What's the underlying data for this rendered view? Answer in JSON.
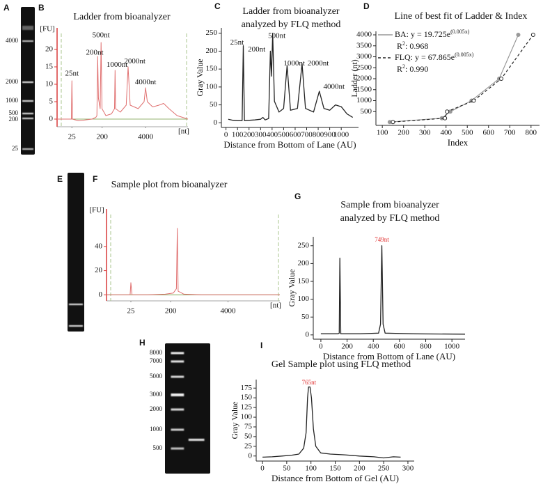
{
  "chart_data": [
    {
      "type": "gel",
      "panel": "A",
      "labels": [
        "4000",
        "2000",
        "1000",
        "500",
        "200",
        "25"
      ]
    },
    {
      "type": "line",
      "style": "bioanalyzer",
      "panel": "B",
      "title": "Ladder from bioanalyzer",
      "ylabel": "[FU]",
      "xlabel": "[nt]",
      "xscale": "log",
      "xlim": [
        9,
        74000
      ],
      "ylim": [
        -2.2,
        26.2
      ],
      "xticks": [
        25,
        200,
        4000
      ],
      "yticks": [
        0,
        5,
        10,
        15,
        20
      ],
      "color": "#e07070",
      "axis_color": "#d83a3a",
      "baseline_color": "#6f9a3f",
      "x": [
        9,
        20,
        24,
        25,
        26,
        40,
        100,
        130,
        140,
        147,
        155,
        175,
        186,
        198,
        260,
        380,
        470,
        488,
        505,
        700,
        1050,
        1200,
        1380,
        2400,
        3600,
        4000,
        4500,
        6500,
        10000,
        13800,
        20000,
        35000,
        74000
      ],
      "values": [
        0,
        0,
        0,
        11,
        0,
        -0.5,
        0,
        0.5,
        1,
        18,
        6,
        3,
        22,
        3,
        1,
        1.5,
        3,
        14,
        3,
        2,
        4,
        15,
        4,
        3,
        5,
        9,
        5,
        3.5,
        4,
        4.5,
        3,
        1,
        0
      ],
      "annotations": [
        {
          "text": "25nt",
          "x": 25,
          "y": 13
        },
        {
          "text": "200nt",
          "x": 120,
          "y": 19
        },
        {
          "text": "500nt",
          "x": 186,
          "y": 24
        },
        {
          "text": "1000nt",
          "x": 560,
          "y": 15.5
        },
        {
          "text": "2000nt",
          "x": 1900,
          "y": 16.5
        },
        {
          "text": "4000nt",
          "x": 4000,
          "y": 10.5
        }
      ]
    },
    {
      "type": "line",
      "panel": "C",
      "title": [
        "Ladder from bioanalyzer",
        "analyzed by FLQ method"
      ],
      "ylabel": "Gray Value",
      "xlabel": "Distance from Bottom of Lane (AU)",
      "xlim": [
        -40,
        1150
      ],
      "ylim": [
        -13,
        265
      ],
      "xticks": [
        0,
        100,
        200,
        300,
        400,
        500,
        600,
        700,
        800,
        900,
        1000
      ],
      "yticks": [
        0,
        50,
        100,
        150,
        200,
        250
      ],
      "color": "#222222",
      "x": [
        20,
        60,
        100,
        140,
        150,
        160,
        250,
        300,
        320,
        340,
        370,
        385,
        395,
        405,
        420,
        460,
        500,
        530,
        560,
        620,
        660,
        690,
        760,
        810,
        850,
        900,
        950,
        1000,
        1050,
        1100
      ],
      "values": [
        10,
        7,
        6,
        6,
        215,
        6,
        8,
        10,
        15,
        8,
        12,
        200,
        130,
        250,
        60,
        30,
        40,
        160,
        35,
        40,
        165,
        40,
        30,
        88,
        40,
        35,
        50,
        45,
        25,
        15
      ],
      "annotations": [
        {
          "text": "25nt",
          "x": 95,
          "y": 223
        },
        {
          "text": "200nt",
          "x": 266,
          "y": 204
        },
        {
          "text": "500nt",
          "x": 441,
          "y": 242
        },
        {
          "text": "1000nt",
          "x": 592,
          "y": 165
        },
        {
          "text": "2000nt",
          "x": 800,
          "y": 165
        },
        {
          "text": "4000nt",
          "x": 937,
          "y": 100
        }
      ]
    },
    {
      "type": "scatter-line",
      "panel": "D",
      "title": "Line of best fit of Ladder & Index",
      "ylabel": "Ladder (nt)",
      "xlabel": "Index",
      "xlim": [
        70,
        840
      ],
      "ylim": [
        -127,
        4160
      ],
      "xticks": [
        100,
        200,
        300,
        400,
        500,
        600,
        700,
        800
      ],
      "yticks": [
        500,
        1000,
        1500,
        2000,
        2500,
        3000,
        3500,
        4000
      ],
      "series": [
        {
          "name": "BA: y = 19.725e",
          "name_sup": "(0.005x)",
          "r2": [
            "R",
            "2",
            ": 0.968"
          ],
          "color": "#999999",
          "dashed": false,
          "marker": "filled",
          "x": [
            135,
            380,
            420,
            520,
            650,
            740
          ],
          "values": [
            25,
            200,
            500,
            1000,
            2000,
            4000
          ]
        },
        {
          "name": "FLQ: y = 67.865e",
          "name_sup": "(0.005x)",
          "r2": [
            "R",
            "2",
            ": 0.990"
          ],
          "color": "#222222",
          "dashed": true,
          "marker": "open",
          "x": [
            150,
            395,
            405,
            530,
            660,
            810
          ],
          "values": [
            25,
            200,
            500,
            1000,
            2000,
            4000
          ]
        }
      ]
    },
    {
      "type": "gel",
      "panel": "E",
      "labels": []
    },
    {
      "type": "line",
      "style": "bioanalyzer",
      "panel": "F",
      "title": "Sample plot from bioanalyzer",
      "ylabel": "[FU]",
      "xlabel": "[nt]",
      "xscale": "log",
      "xlim": [
        7,
        60000
      ],
      "ylim": [
        -5,
        71
      ],
      "xticks": [
        25,
        200,
        4000
      ],
      "yticks": [
        0,
        20,
        40
      ],
      "color": "#e07070",
      "axis_color": "#d83a3a",
      "baseline_color": "#6f9a3f",
      "x": [
        7,
        20,
        24,
        25,
        26.5,
        60,
        150,
        230,
        270,
        283,
        295,
        400,
        1000,
        60000
      ],
      "values": [
        0,
        0,
        0,
        10,
        0,
        0,
        0.5,
        1.5,
        5,
        55,
        3,
        0.5,
        0,
        0
      ]
    },
    {
      "type": "line",
      "panel": "G",
      "title": [
        "Sample from bioanalyzer",
        "analyzed by FLQ method"
      ],
      "ylabel": "Gray Value",
      "xlabel": "Distance from Bottom of Lane (AU)",
      "xlim": [
        -58,
        1100
      ],
      "ylim": [
        -12,
        275
      ],
      "xticks": [
        0,
        200,
        400,
        600,
        800,
        1000
      ],
      "yticks": [
        0,
        50,
        100,
        150,
        200,
        250
      ],
      "color": "#222222",
      "annotation_color": "#e03030",
      "x": [
        0,
        130,
        140,
        145,
        152,
        300,
        440,
        455,
        465,
        475,
        490,
        700,
        1100
      ],
      "values": [
        3,
        3,
        5,
        215,
        3,
        3,
        5,
        30,
        250,
        30,
        5,
        3,
        2
      ],
      "annotations": [
        {
          "text": "749nt",
          "x": 465,
          "y": 265
        }
      ]
    },
    {
      "type": "gel",
      "panel": "H",
      "labels": [
        "8000",
        "7000",
        "5000",
        "3000",
        "2000",
        "1000",
        "500"
      ]
    },
    {
      "type": "line",
      "panel": "I",
      "title": "Gel Sample plot using FLQ method",
      "ylabel": "Gray Value",
      "xlabel": "Distance from Bottom of Gel (AU)",
      "xlim": [
        -13,
        313
      ],
      "ylim": [
        -13,
        197
      ],
      "xticks": [
        0,
        50,
        100,
        150,
        200,
        250,
        300
      ],
      "yticks": [
        0,
        25,
        50,
        75,
        100,
        125,
        150,
        175
      ],
      "color": "#222222",
      "annotation_color": "#e03030",
      "x": [
        0,
        20,
        40,
        60,
        75,
        85,
        90,
        93,
        95,
        98,
        101,
        105,
        110,
        120,
        140,
        170,
        200,
        230,
        250,
        270,
        285
      ],
      "values": [
        -3,
        -2,
        0,
        2,
        5,
        20,
        60,
        150,
        178,
        178,
        150,
        70,
        25,
        8,
        5,
        3,
        0,
        -2,
        -5,
        -2,
        -3
      ],
      "annotations": [
        {
          "text": "765nt",
          "x": 96,
          "y": 188
        }
      ]
    }
  ]
}
